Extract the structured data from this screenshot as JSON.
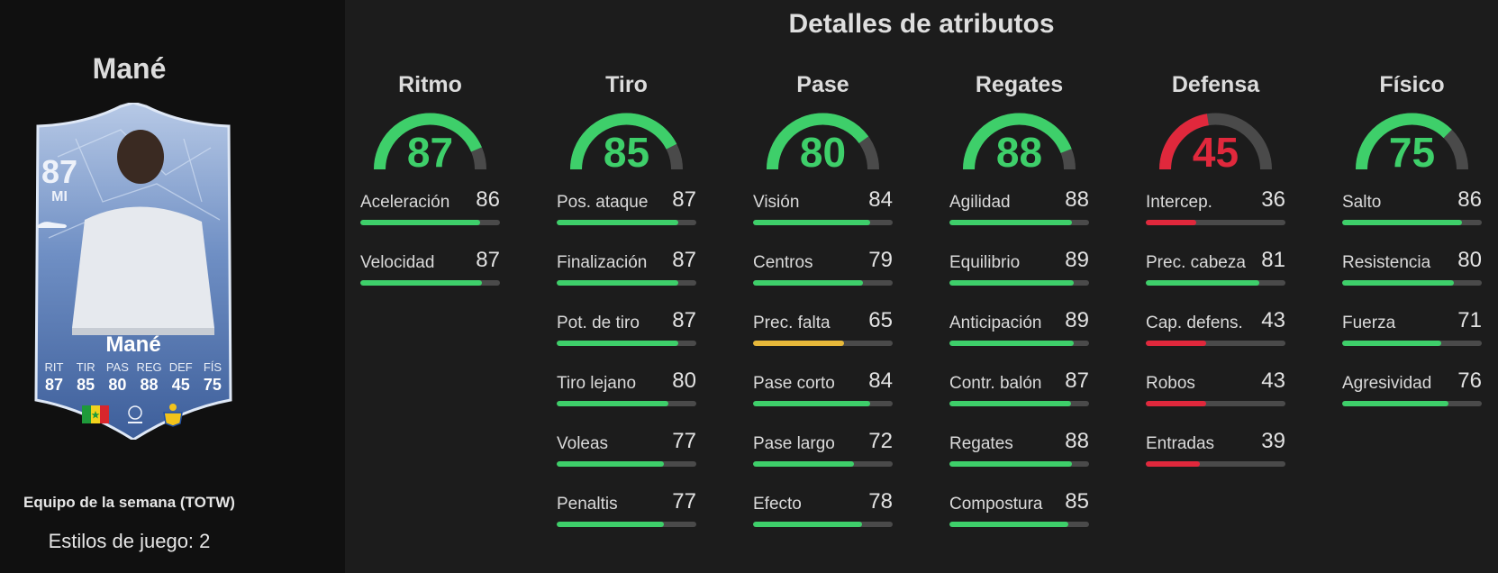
{
  "player": {
    "name": "Mané",
    "rating": "87",
    "position": "MI",
    "program": "Equipo de la semana (TOTW)",
    "playstyles": "Estilos de juego: 2"
  },
  "card_stats": [
    {
      "label": "RIT",
      "value": "87"
    },
    {
      "label": "TIR",
      "value": "85"
    },
    {
      "label": "PAS",
      "value": "80"
    },
    {
      "label": "REG",
      "value": "88"
    },
    {
      "label": "DEF",
      "value": "45"
    },
    {
      "label": "FÍS",
      "value": "75"
    }
  ],
  "section_title": "Detalles de atributos",
  "colors": {
    "high": "#3ecf6a",
    "mid": "#e7b83a",
    "low": "#e0283c",
    "track": "#4a4a4a"
  },
  "categories": [
    {
      "title": "Ritmo",
      "value": 87,
      "attributes": [
        {
          "name": "Aceleración",
          "value": 86
        },
        {
          "name": "Velocidad",
          "value": 87
        }
      ]
    },
    {
      "title": "Tiro",
      "value": 85,
      "attributes": [
        {
          "name": "Pos. ataque",
          "value": 87
        },
        {
          "name": "Finalización",
          "value": 87
        },
        {
          "name": "Pot. de tiro",
          "value": 87
        },
        {
          "name": "Tiro lejano",
          "value": 80
        },
        {
          "name": "Voleas",
          "value": 77
        },
        {
          "name": "Penaltis",
          "value": 77
        }
      ]
    },
    {
      "title": "Pase",
      "value": 80,
      "attributes": [
        {
          "name": "Visión",
          "value": 84
        },
        {
          "name": "Centros",
          "value": 79
        },
        {
          "name": "Prec. falta",
          "value": 65
        },
        {
          "name": "Pase corto",
          "value": 84
        },
        {
          "name": "Pase largo",
          "value": 72
        },
        {
          "name": "Efecto",
          "value": 78
        }
      ]
    },
    {
      "title": "Regates",
      "value": 88,
      "attributes": [
        {
          "name": "Agilidad",
          "value": 88
        },
        {
          "name": "Equilibrio",
          "value": 89
        },
        {
          "name": "Anticipación",
          "value": 89
        },
        {
          "name": "Contr. balón",
          "value": 87
        },
        {
          "name": "Regates",
          "value": 88
        },
        {
          "name": "Compostura",
          "value": 85
        }
      ]
    },
    {
      "title": "Defensa",
      "value": 45,
      "attributes": [
        {
          "name": "Intercep.",
          "value": 36
        },
        {
          "name": "Prec. cabeza",
          "value": 81
        },
        {
          "name": "Cap. defens.",
          "value": 43
        },
        {
          "name": "Robos",
          "value": 43
        },
        {
          "name": "Entradas",
          "value": 39
        }
      ]
    },
    {
      "title": "Físico",
      "value": 75,
      "attributes": [
        {
          "name": "Salto",
          "value": 86
        },
        {
          "name": "Resistencia",
          "value": 80
        },
        {
          "name": "Fuerza",
          "value": 71
        },
        {
          "name": "Agresividad",
          "value": 76
        }
      ]
    }
  ]
}
